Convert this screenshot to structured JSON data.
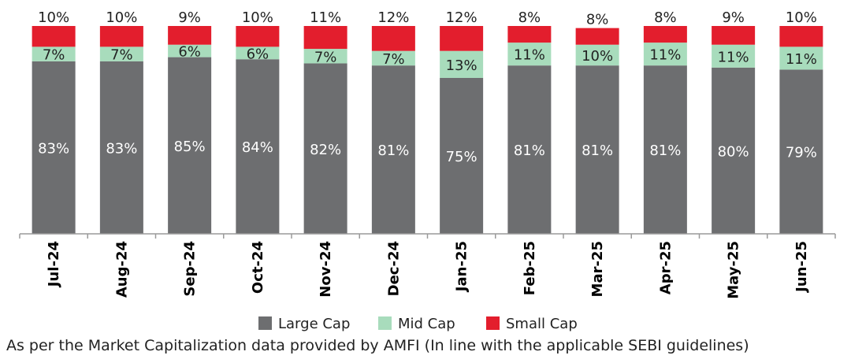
{
  "chart_data": {
    "type": "bar",
    "stacked": true,
    "percent_stacked": true,
    "title": "",
    "xlabel": "",
    "ylabel": "",
    "ylim": [
      0,
      100
    ],
    "grid": false,
    "legend_position": "bottom",
    "categories": [
      "Jul-24",
      "Aug-24",
      "Sep-24",
      "Oct-24",
      "Nov-24",
      "Dec-24",
      "Jan-25",
      "Feb-25",
      "Mar-25",
      "Apr-25",
      "May-25",
      "Jun-25"
    ],
    "series": [
      {
        "name": "Large Cap",
        "color": "#6d6e70",
        "values": [
          83,
          83,
          85,
          84,
          82,
          81,
          75,
          81,
          81,
          81,
          80,
          79
        ]
      },
      {
        "name": "Mid Cap",
        "color": "#a8dcbc",
        "values": [
          7,
          7,
          6,
          6,
          7,
          7,
          13,
          11,
          10,
          11,
          11,
          11
        ]
      },
      {
        "name": "Small Cap",
        "color": "#e31e2d",
        "values": [
          10,
          10,
          9,
          10,
          11,
          12,
          12,
          8,
          8,
          8,
          9,
          10
        ]
      }
    ],
    "value_suffix": "%"
  },
  "footnote": "As per the Market Capitalization data provided by AMFI (In line with the applicable SEBI guidelines)"
}
